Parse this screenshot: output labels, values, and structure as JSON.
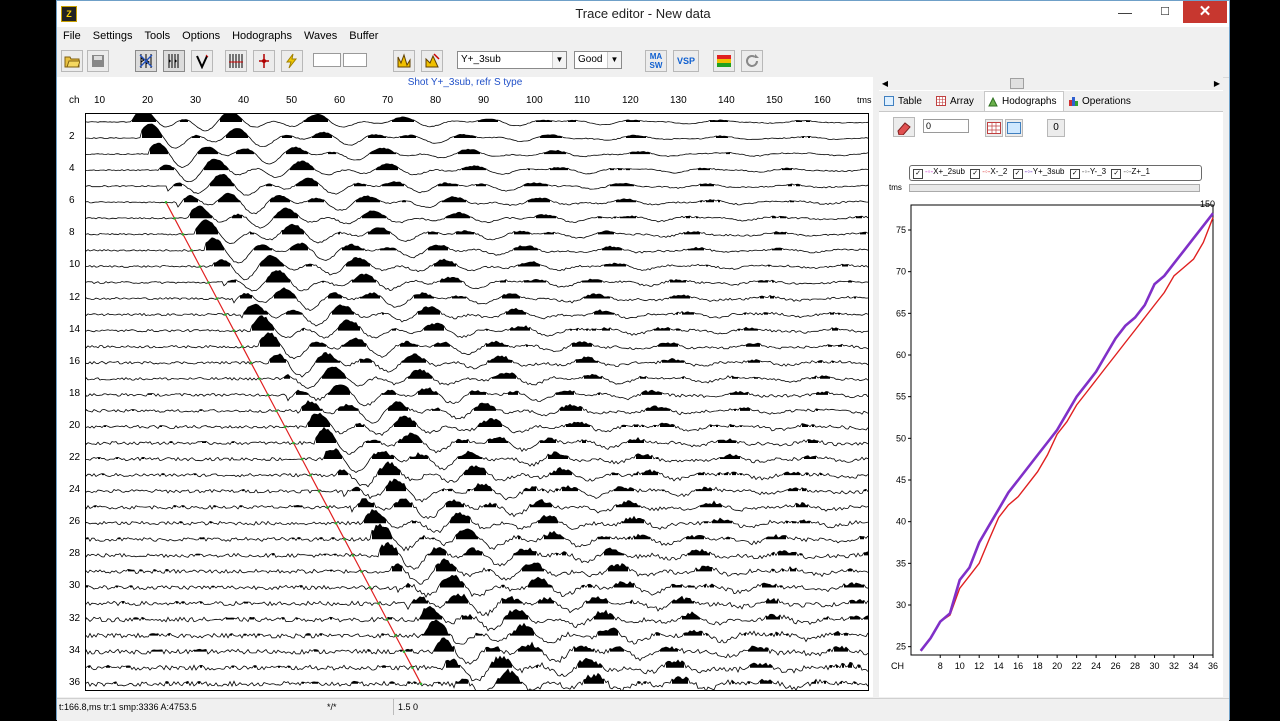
{
  "window": {
    "title": "Trace editor - New data",
    "app_icon": "Z",
    "buttons": {
      "minimize": "—",
      "maximize": "☐",
      "close": "✕"
    }
  },
  "menu": [
    "File",
    "Settings",
    "Tools",
    "Options",
    "Hodographs",
    "Waves",
    "Buffer"
  ],
  "toolbar": {
    "component_select": "Y+_3sub",
    "quality_select": "Good",
    "masw_label": "MA\nSW",
    "vsp_label": "VSP"
  },
  "seismogram": {
    "title": "Shot Y+_3sub, refr S type",
    "x_axis_label": "ch",
    "x_unit": "tms",
    "x_ticks": [
      "10",
      "20",
      "30",
      "40",
      "50",
      "60",
      "70",
      "80",
      "90",
      "100",
      "110",
      "120",
      "130",
      "140",
      "150",
      "160"
    ],
    "y_ticks": [
      "2",
      "4",
      "6",
      "8",
      "10",
      "12",
      "14",
      "16",
      "18",
      "20",
      "22",
      "24",
      "26",
      "28",
      "30",
      "32",
      "34",
      "36"
    ],
    "trace_count": 36
  },
  "right_panel": {
    "tabs": [
      {
        "label": "Table",
        "icon": "table-icon"
      },
      {
        "label": "Array",
        "icon": "array-icon"
      },
      {
        "label": "Hodographs",
        "icon": "hodograph-icon",
        "active": true
      },
      {
        "label": "Operations",
        "icon": "operations-icon"
      }
    ],
    "offset_value": "0",
    "zero_button": "0",
    "legend": [
      {
        "label": "X+_2sub",
        "color": "#d040d0"
      },
      {
        "label": "X-_2",
        "color": "#e05050"
      },
      {
        "label": "Y+_3sub",
        "color": "#7030c0"
      },
      {
        "label": "Y-_3",
        "color": "#606060"
      },
      {
        "label": "Z+_1",
        "color": "#606060"
      }
    ],
    "legend_axis_label": "tms"
  },
  "chart_data": {
    "type": "line",
    "xlabel": "CH",
    "ylabel": "tms",
    "xlim": [
      5,
      36
    ],
    "ylim": [
      24,
      78
    ],
    "x_ticks": [
      8,
      10,
      12,
      14,
      16,
      18,
      20,
      22,
      24,
      26,
      28,
      30,
      32,
      34,
      36
    ],
    "y_ticks": [
      25,
      30,
      35,
      40,
      45,
      50,
      55,
      60,
      65,
      70,
      75
    ],
    "corner_label": "150",
    "x": [
      6,
      7,
      8,
      9,
      10,
      11,
      12,
      13,
      14,
      15,
      16,
      17,
      18,
      19,
      20,
      21,
      22,
      23,
      24,
      25,
      26,
      27,
      28,
      29,
      30,
      31,
      32,
      33,
      34,
      35,
      36
    ],
    "series": [
      {
        "name": "Y+_3sub",
        "color": "#8030c8",
        "values": [
          24.5,
          26,
          28,
          29,
          33,
          34.5,
          37.5,
          39.5,
          41.5,
          43.5,
          45,
          46.5,
          48,
          49.5,
          51,
          53,
          55,
          56.5,
          58,
          60,
          62,
          63.5,
          64.5,
          66,
          68.5,
          69.5,
          71,
          72.5,
          74,
          75.5,
          77
        ]
      },
      {
        "name": "X-_2",
        "color": "#e02020",
        "values": [
          24.5,
          26,
          28,
          28.8,
          32,
          33.5,
          35,
          37.8,
          40.5,
          42,
          43,
          44.5,
          46,
          48,
          50.5,
          52,
          54,
          55.5,
          57,
          58.5,
          60,
          61.5,
          63,
          64.5,
          66,
          67.5,
          69.5,
          70.5,
          71.5,
          73.5,
          76.5
        ]
      }
    ]
  },
  "status": {
    "readout": "t:166.8,ms tr:1 smp:3336 A:4753.5",
    "middle": "*/*",
    "scale": "1.5 0"
  }
}
